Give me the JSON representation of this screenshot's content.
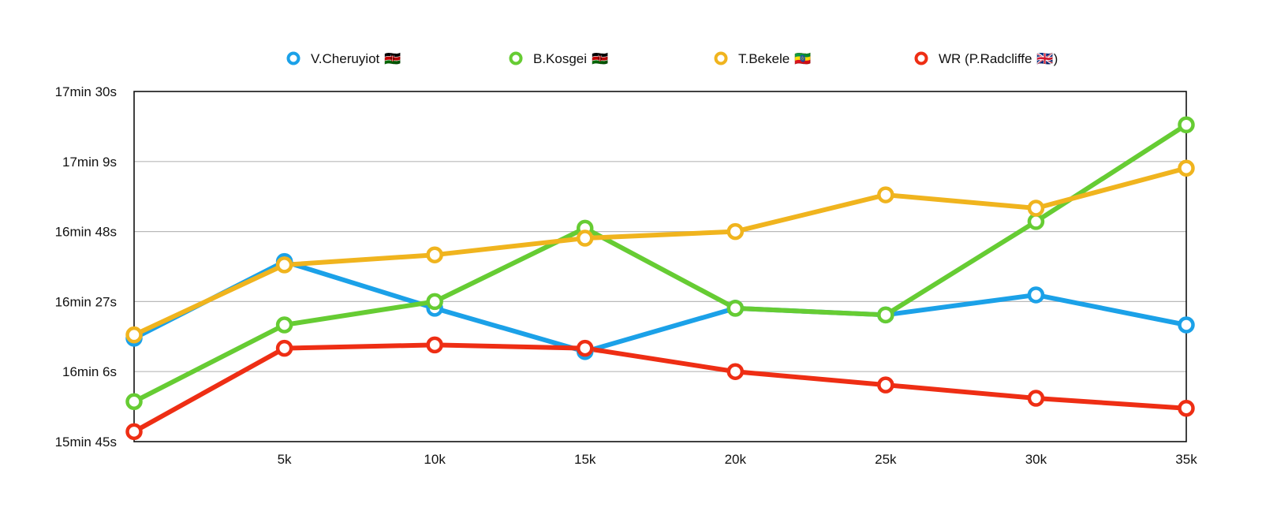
{
  "chart_data": {
    "type": "line",
    "title": "",
    "xlabel": "",
    "ylabel": "",
    "categories": [
      "",
      "5k",
      "10k",
      "15k",
      "20k",
      "25k",
      "30k",
      "35k"
    ],
    "y_tick_labels": [
      "17min 30s",
      "17min 9s",
      "16min 48s",
      "16min 27s",
      "16min 6s",
      "15min 45s"
    ],
    "y_ticks_seconds": [
      1050,
      1029,
      1008,
      987,
      966,
      945
    ],
    "ylim_seconds": [
      945,
      1050
    ],
    "grid": true,
    "legend_position": "top",
    "series": [
      {
        "name": "V.Cheruyiot",
        "flag": "🇰🇪",
        "color": "#1ba1e8",
        "values": [
          976,
          999,
          985,
          972,
          985,
          983,
          989,
          980
        ]
      },
      {
        "name": "B.Kosgei",
        "flag": "🇰🇪",
        "color": "#66cc33",
        "values": [
          957,
          980,
          987,
          1009,
          985,
          983,
          1011,
          1040
        ]
      },
      {
        "name": "T.Bekele",
        "flag": "🇪🇹",
        "color": "#f0b41e",
        "values": [
          977,
          998,
          1001,
          1006,
          1008,
          1019,
          1015,
          1027
        ]
      },
      {
        "name": "WR (P.Radcliffe",
        "flag": "🇬🇧",
        "name_suffix": ")",
        "color": "#ee2e14",
        "values": [
          948,
          973,
          974,
          973,
          966,
          962,
          958,
          955
        ]
      }
    ]
  }
}
